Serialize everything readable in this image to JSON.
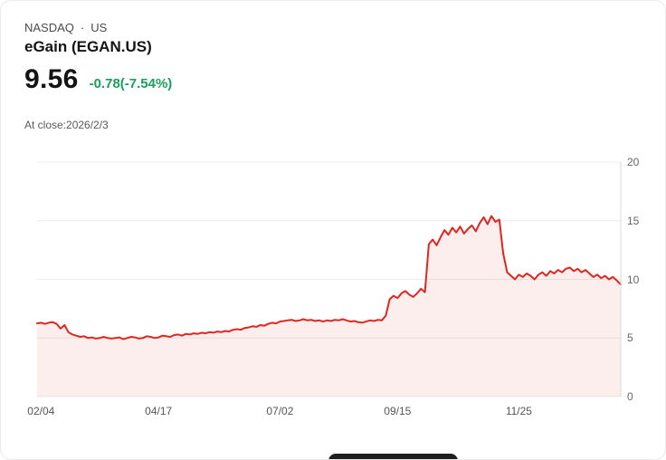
{
  "header": {
    "exchange": "NASDAQ",
    "separator": "·",
    "region": "US",
    "symbol_title": "eGain (EGAN.US)",
    "price": "9.56",
    "change_text": "-0.78(-7.54%)",
    "close_note": "At close:2026/2/3"
  },
  "colors": {
    "line": "#e02620",
    "area_fill": "rgba(224,38,32,0.08)",
    "change_text": "#18a05a",
    "grid": "#ececec",
    "axis_line": "#d9d9d9"
  },
  "chart_data": {
    "type": "area",
    "title": "",
    "xlabel": "",
    "ylabel": "",
    "ylim": [
      0,
      20
    ],
    "grid": true,
    "legend": false,
    "y_ticks": [
      20,
      15,
      10,
      5,
      0
    ],
    "x_ticks": [
      {
        "label": "02/04",
        "index": 1
      },
      {
        "label": "04/17",
        "index": 31
      },
      {
        "label": "07/02",
        "index": 62
      },
      {
        "label": "09/15",
        "index": 92
      },
      {
        "label": "11/25",
        "index": 123
      }
    ],
    "values": [
      6.25,
      6.3,
      6.2,
      6.3,
      6.35,
      6.2,
      5.8,
      6.1,
      5.5,
      5.3,
      5.2,
      5.1,
      5.15,
      5.0,
      5.05,
      4.95,
      5.0,
      5.1,
      5.0,
      4.95,
      5.0,
      5.05,
      4.9,
      5.0,
      5.1,
      5.05,
      4.95,
      5.0,
      5.15,
      5.1,
      5.0,
      5.05,
      5.2,
      5.15,
      5.1,
      5.25,
      5.3,
      5.2,
      5.35,
      5.3,
      5.4,
      5.35,
      5.45,
      5.4,
      5.5,
      5.45,
      5.55,
      5.5,
      5.6,
      5.55,
      5.7,
      5.75,
      5.7,
      5.85,
      5.9,
      6.0,
      5.95,
      6.1,
      6.05,
      6.2,
      6.3,
      6.25,
      6.4,
      6.45,
      6.5,
      6.55,
      6.45,
      6.5,
      6.6,
      6.5,
      6.55,
      6.45,
      6.5,
      6.4,
      6.5,
      6.45,
      6.55,
      6.5,
      6.6,
      6.5,
      6.4,
      6.45,
      6.35,
      6.3,
      6.4,
      6.5,
      6.45,
      6.55,
      6.5,
      6.9,
      8.3,
      8.6,
      8.4,
      8.8,
      9.0,
      8.7,
      8.5,
      8.8,
      9.2,
      8.9,
      13.0,
      13.4,
      12.9,
      13.6,
      14.2,
      13.8,
      14.4,
      14.0,
      14.5,
      13.9,
      14.3,
      14.6,
      14.1,
      14.8,
      15.3,
      14.7,
      15.4,
      14.9,
      15.1,
      12.2,
      10.6,
      10.3,
      10.0,
      10.4,
      10.2,
      10.5,
      10.3,
      10.0,
      10.4,
      10.6,
      10.3,
      10.7,
      10.5,
      10.8,
      10.6,
      10.9,
      11.0,
      10.7,
      10.9,
      10.6,
      10.8,
      10.5,
      10.2,
      10.4,
      10.1,
      10.3,
      10.0,
      10.2,
      9.9,
      9.56
    ]
  }
}
